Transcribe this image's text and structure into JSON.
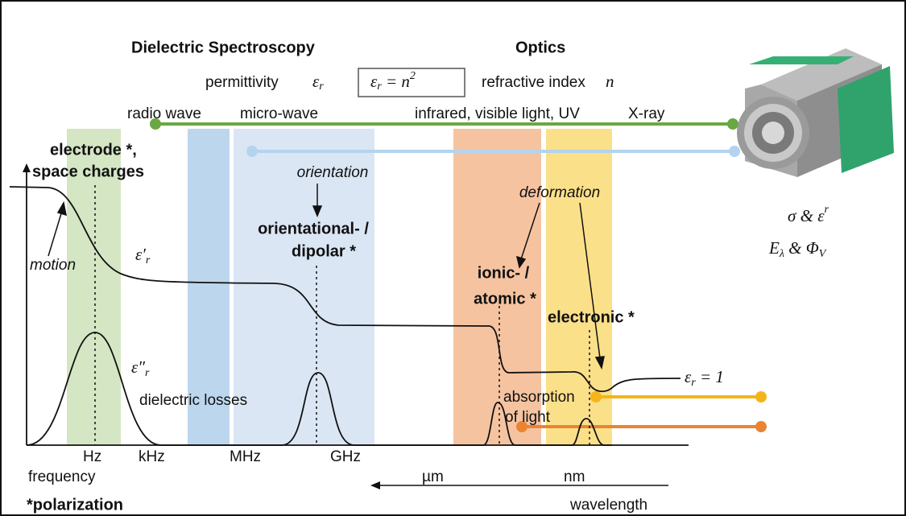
{
  "headers": {
    "dielectric": "Dielectric Spectroscopy",
    "optics": "Optics"
  },
  "relation": {
    "permittivity": "permittivity",
    "permittivity_symbol": "ε",
    "permittivity_sub": "r",
    "equation": {
      "lhs": "ε",
      "sub": "r",
      "rhs": " = n",
      "power": "2"
    },
    "refractive": "refractive index",
    "refractive_symbol": "n"
  },
  "spectrum": [
    "radio wave",
    "micro-wave",
    "infrared, visible light, UV",
    "X-ray"
  ],
  "mechanisms": {
    "electrode": [
      "electrode *,",
      "space charges"
    ],
    "orientation": "orientation",
    "dipolar": [
      "orientational- /",
      "dipolar *"
    ],
    "deformation": "deformation",
    "ionic": [
      "ionic- /",
      "atomic *"
    ],
    "electronic": "electronic *",
    "motion": "motion"
  },
  "curves": {
    "real": {
      "symbol": "ε′",
      "sub": "r"
    },
    "imag": {
      "symbol": "ε″",
      "sub": "r"
    },
    "losses": "dielectric losses",
    "absorption": [
      "absorption",
      "of light"
    ],
    "unity": {
      "symbol": "ε",
      "sub": "r",
      "rest": " = 1"
    }
  },
  "axes": {
    "frequency_ticks": [
      "Hz",
      "kHz",
      "MHz",
      "GHz"
    ],
    "wavelength_ticks": [
      "µm",
      "nm"
    ],
    "frequency": "frequency",
    "wavelength": "wavelength",
    "footnote": "*polarization"
  },
  "device": {
    "line1": {
      "a": "σ",
      "b": " & ε",
      "sup": "r"
    },
    "line2": {
      "a": "E",
      "sub_a": "λ",
      "b": " & Φ",
      "sub_b": "V"
    }
  }
}
